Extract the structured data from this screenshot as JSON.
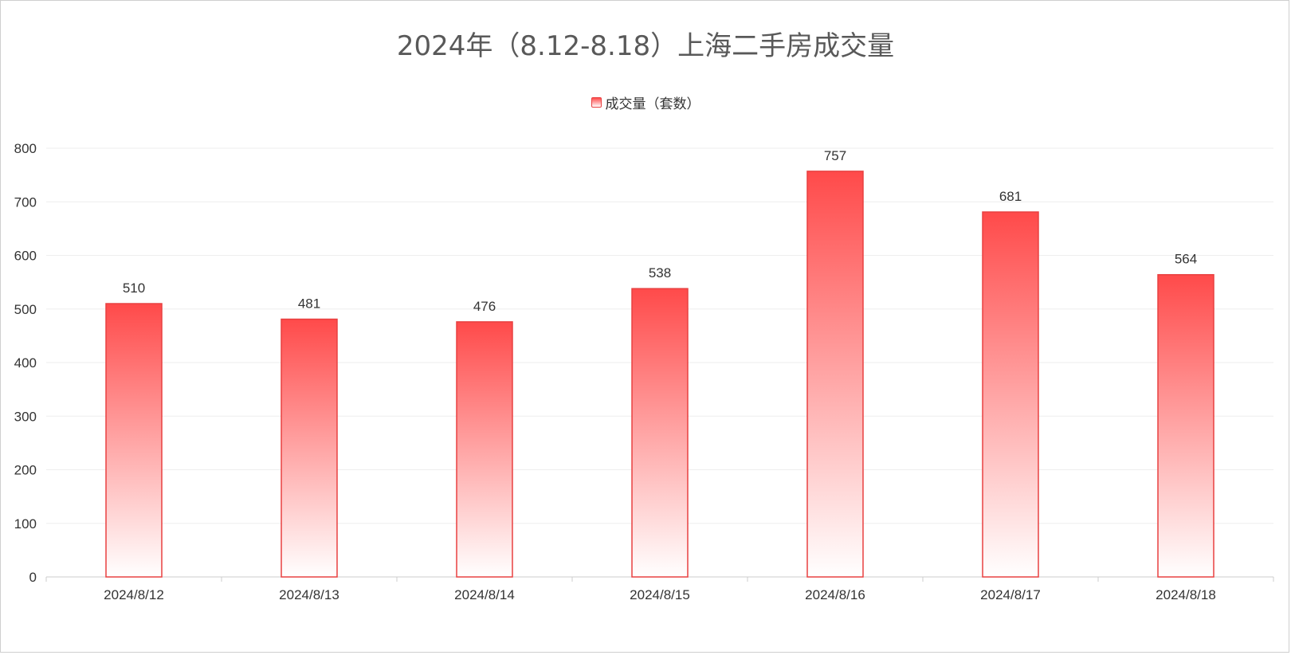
{
  "colors": {
    "bar_top": "#ff4a4a",
    "bar_bottom": "#ffffff",
    "bar_border": "#e84040",
    "grid": "#eeeeee",
    "axis": "#cccccc",
    "text": "#333333",
    "title": "#595959"
  },
  "chart_data": {
    "type": "bar",
    "title": "2024年（8.12-8.18）上海二手房成交量",
    "legend_position": "top-center",
    "grid": true,
    "categories": [
      "2024/8/12",
      "2024/8/13",
      "2024/8/14",
      "2024/8/15",
      "2024/8/16",
      "2024/8/17",
      "2024/8/18"
    ],
    "series": [
      {
        "name": "成交量（套数）",
        "values": [
          510,
          481,
          476,
          538,
          757,
          681,
          564
        ]
      }
    ],
    "ylim": [
      0,
      800
    ],
    "yticks": [
      0,
      100,
      200,
      300,
      400,
      500,
      600,
      700,
      800
    ],
    "xlabel": "",
    "ylabel": ""
  }
}
